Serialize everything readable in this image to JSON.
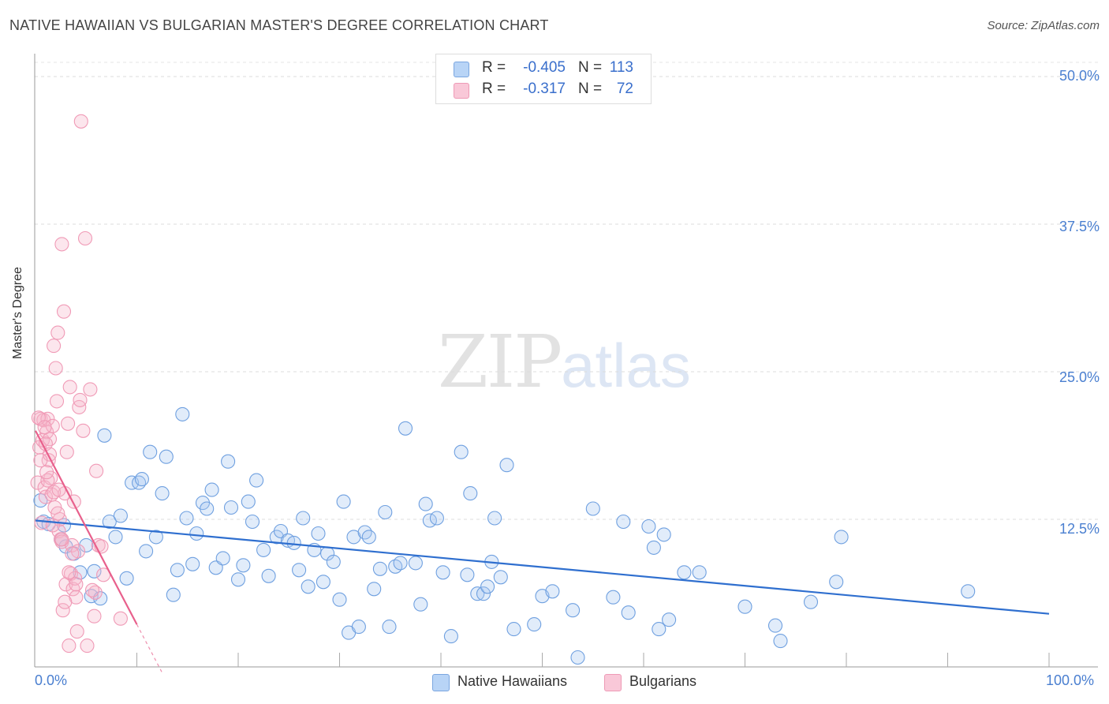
{
  "header": {
    "title": "NATIVE HAWAIIAN VS BULGARIAN MASTER'S DEGREE CORRELATION CHART",
    "source": "Source: ZipAtlas.com"
  },
  "watermark": {
    "zip": "ZIP",
    "atlas": "atlas"
  },
  "legend_top": [
    {
      "r_label": "R =",
      "r_value": "-0.405",
      "n_label": "N =",
      "n_value": "113",
      "color": "#a8c8f0"
    },
    {
      "r_label": "R =",
      "r_value": "-0.317",
      "n_label": "N =",
      "n_value": "72",
      "color": "#f6b8cc"
    }
  ],
  "legend_bottom": [
    {
      "label": "Native Hawaiians",
      "color": "#a8c8f0"
    },
    {
      "label": "Bulgarians",
      "color": "#f6b8cc"
    }
  ],
  "chart_data": {
    "type": "scatter",
    "title": "NATIVE HAWAIIAN VS BULGARIAN MASTER'S DEGREE CORRELATION CHART",
    "xlabel": "",
    "ylabel": "Master's Degree",
    "xlim": [
      0,
      100
    ],
    "ylim": [
      0,
      50
    ],
    "x_tick_labels": [
      "0.0%",
      "100.0%"
    ],
    "y_ticks": [
      12.5,
      25.0,
      37.5,
      50.0
    ],
    "y_tick_labels": [
      "12.5%",
      "25.0%",
      "37.5%",
      "50.0%"
    ],
    "grid": "horizontal dashed",
    "series": [
      {
        "name": "Native Hawaiians",
        "color": "#6fa0e0",
        "line_color": "#2f6fcf",
        "trend": {
          "x": [
            0,
            100
          ],
          "y": [
            12.4,
            4.5
          ]
        },
        "points": [
          [
            0.5,
            14.1
          ],
          [
            0.8,
            12.3
          ],
          [
            1.3,
            12.1
          ],
          [
            2.5,
            10.8
          ],
          [
            3.0,
            10.2
          ],
          [
            2.8,
            12.0
          ],
          [
            3.8,
            9.6
          ],
          [
            4.4,
            8.0
          ],
          [
            5.0,
            10.3
          ],
          [
            5.5,
            6.0
          ],
          [
            5.8,
            8.1
          ],
          [
            6.4,
            5.8
          ],
          [
            6.8,
            19.6
          ],
          [
            7.3,
            12.3
          ],
          [
            7.9,
            11.0
          ],
          [
            8.4,
            12.8
          ],
          [
            9.0,
            7.5
          ],
          [
            9.5,
            15.6
          ],
          [
            10.2,
            15.6
          ],
          [
            10.5,
            15.9
          ],
          [
            10.9,
            9.8
          ],
          [
            11.3,
            18.2
          ],
          [
            11.9,
            11.0
          ],
          [
            12.5,
            14.7
          ],
          [
            12.9,
            17.8
          ],
          [
            13.6,
            6.1
          ],
          [
            14.0,
            8.2
          ],
          [
            14.5,
            21.4
          ],
          [
            14.9,
            12.6
          ],
          [
            15.5,
            8.7
          ],
          [
            15.9,
            11.3
          ],
          [
            16.5,
            13.9
          ],
          [
            16.9,
            13.4
          ],
          [
            17.4,
            15.0
          ],
          [
            17.8,
            8.4
          ],
          [
            18.5,
            9.2
          ],
          [
            19.0,
            17.4
          ],
          [
            19.3,
            13.5
          ],
          [
            20.0,
            7.4
          ],
          [
            20.5,
            8.6
          ],
          [
            21.0,
            14.0
          ],
          [
            21.4,
            12.3
          ],
          [
            21.8,
            15.8
          ],
          [
            22.5,
            9.9
          ],
          [
            23.0,
            7.7
          ],
          [
            23.8,
            11.0
          ],
          [
            24.2,
            11.5
          ],
          [
            24.9,
            10.7
          ],
          [
            25.5,
            10.5
          ],
          [
            26.0,
            8.2
          ],
          [
            26.4,
            12.6
          ],
          [
            26.9,
            6.8
          ],
          [
            27.5,
            9.9
          ],
          [
            27.9,
            11.3
          ],
          [
            28.4,
            7.2
          ],
          [
            28.8,
            9.6
          ],
          [
            29.4,
            8.9
          ],
          [
            30.0,
            5.7
          ],
          [
            30.4,
            14.0
          ],
          [
            30.9,
            2.9
          ],
          [
            31.4,
            11.0
          ],
          [
            31.9,
            3.4
          ],
          [
            32.5,
            11.4
          ],
          [
            32.9,
            11.0
          ],
          [
            33.4,
            6.6
          ],
          [
            34.0,
            8.3
          ],
          [
            34.5,
            13.1
          ],
          [
            34.9,
            3.4
          ],
          [
            35.5,
            8.5
          ],
          [
            36.0,
            8.8
          ],
          [
            36.5,
            20.2
          ],
          [
            37.5,
            8.8
          ],
          [
            38.0,
            5.3
          ],
          [
            38.5,
            13.8
          ],
          [
            38.9,
            12.4
          ],
          [
            39.6,
            12.6
          ],
          [
            40.2,
            8.0
          ],
          [
            41.0,
            2.6
          ],
          [
            42.0,
            18.2
          ],
          [
            42.6,
            7.8
          ],
          [
            42.9,
            14.7
          ],
          [
            43.6,
            6.2
          ],
          [
            44.2,
            6.2
          ],
          [
            44.6,
            6.8
          ],
          [
            45.0,
            8.9
          ],
          [
            45.3,
            12.6
          ],
          [
            45.9,
            7.6
          ],
          [
            46.5,
            17.1
          ],
          [
            47.2,
            3.2
          ],
          [
            49.2,
            3.6
          ],
          [
            50.0,
            6.0
          ],
          [
            51.0,
            6.4
          ],
          [
            53.0,
            4.8
          ],
          [
            55.0,
            13.4
          ],
          [
            57.0,
            5.9
          ],
          [
            58.0,
            12.3
          ],
          [
            58.5,
            4.6
          ],
          [
            60.5,
            11.9
          ],
          [
            61.0,
            10.1
          ],
          [
            61.5,
            3.2
          ],
          [
            62.0,
            11.2
          ],
          [
            62.5,
            4.0
          ],
          [
            64.0,
            8.0
          ],
          [
            65.5,
            8.0
          ],
          [
            70.0,
            5.1
          ],
          [
            73.0,
            3.5
          ],
          [
            73.5,
            2.2
          ],
          [
            76.5,
            5.5
          ],
          [
            79.0,
            7.2
          ],
          [
            79.5,
            11.0
          ],
          [
            92.0,
            6.4
          ],
          [
            53.5,
            0.8
          ]
        ]
      },
      {
        "name": "Bulgarians",
        "color": "#f09ab6",
        "line_color": "#e8608c",
        "trend": {
          "x": [
            0,
            10
          ],
          "y": [
            20.0,
            3.6
          ]
        },
        "trend_dashed": {
          "x": [
            10,
            12.5
          ],
          "y": [
            3.6,
            -0.5
          ]
        },
        "points": [
          [
            0.2,
            15.6
          ],
          [
            0.4,
            18.6
          ],
          [
            0.5,
            21.0
          ],
          [
            0.7,
            19.2
          ],
          [
            0.8,
            20.9
          ],
          [
            0.9,
            15.2
          ],
          [
            1.0,
            14.4
          ],
          [
            1.1,
            19.9
          ],
          [
            1.2,
            21.0
          ],
          [
            1.3,
            17.5
          ],
          [
            1.4,
            19.3
          ],
          [
            1.5,
            16.0
          ],
          [
            1.6,
            14.6
          ],
          [
            1.7,
            20.4
          ],
          [
            1.8,
            27.2
          ],
          [
            1.9,
            13.5
          ],
          [
            2.0,
            25.3
          ],
          [
            2.1,
            22.5
          ],
          [
            2.2,
            28.3
          ],
          [
            2.3,
            11.5
          ],
          [
            2.4,
            12.5
          ],
          [
            2.5,
            10.8
          ],
          [
            2.6,
            10.6
          ],
          [
            2.7,
            4.8
          ],
          [
            2.8,
            30.1
          ],
          [
            2.9,
            14.7
          ],
          [
            3.0,
            7.0
          ],
          [
            3.1,
            18.2
          ],
          [
            3.2,
            20.6
          ],
          [
            3.3,
            1.8
          ],
          [
            3.4,
            23.7
          ],
          [
            3.5,
            7.9
          ],
          [
            3.6,
            10.3
          ],
          [
            3.7,
            6.6
          ],
          [
            3.8,
            14.0
          ],
          [
            3.9,
            7.5
          ],
          [
            4.0,
            5.9
          ],
          [
            4.1,
            3.0
          ],
          [
            4.2,
            9.8
          ],
          [
            4.3,
            22.0
          ],
          [
            4.4,
            22.6
          ],
          [
            4.5,
            46.2
          ],
          [
            4.7,
            20.0
          ],
          [
            4.9,
            36.3
          ],
          [
            5.1,
            1.8
          ],
          [
            5.4,
            23.5
          ],
          [
            5.8,
            4.3
          ],
          [
            5.9,
            6.3
          ],
          [
            6.0,
            16.6
          ],
          [
            6.2,
            10.3
          ],
          [
            6.7,
            7.8
          ],
          [
            8.4,
            4.1
          ],
          [
            0.3,
            21.1
          ],
          [
            0.6,
            12.2
          ],
          [
            1.0,
            18.9
          ],
          [
            1.7,
            12.0
          ],
          [
            2.2,
            13.0
          ],
          [
            2.6,
            35.8
          ],
          [
            2.9,
            5.5
          ],
          [
            3.3,
            8.0
          ],
          [
            4.0,
            7.0
          ],
          [
            1.2,
            15.8
          ],
          [
            0.9,
            20.3
          ],
          [
            1.4,
            18.0
          ],
          [
            1.8,
            14.8
          ],
          [
            2.3,
            15.0
          ],
          [
            2.6,
            10.8
          ],
          [
            3.6,
            9.6
          ],
          [
            5.6,
            6.5
          ],
          [
            6.5,
            10.2
          ],
          [
            0.5,
            17.5
          ],
          [
            1.1,
            16.5
          ]
        ]
      }
    ]
  }
}
